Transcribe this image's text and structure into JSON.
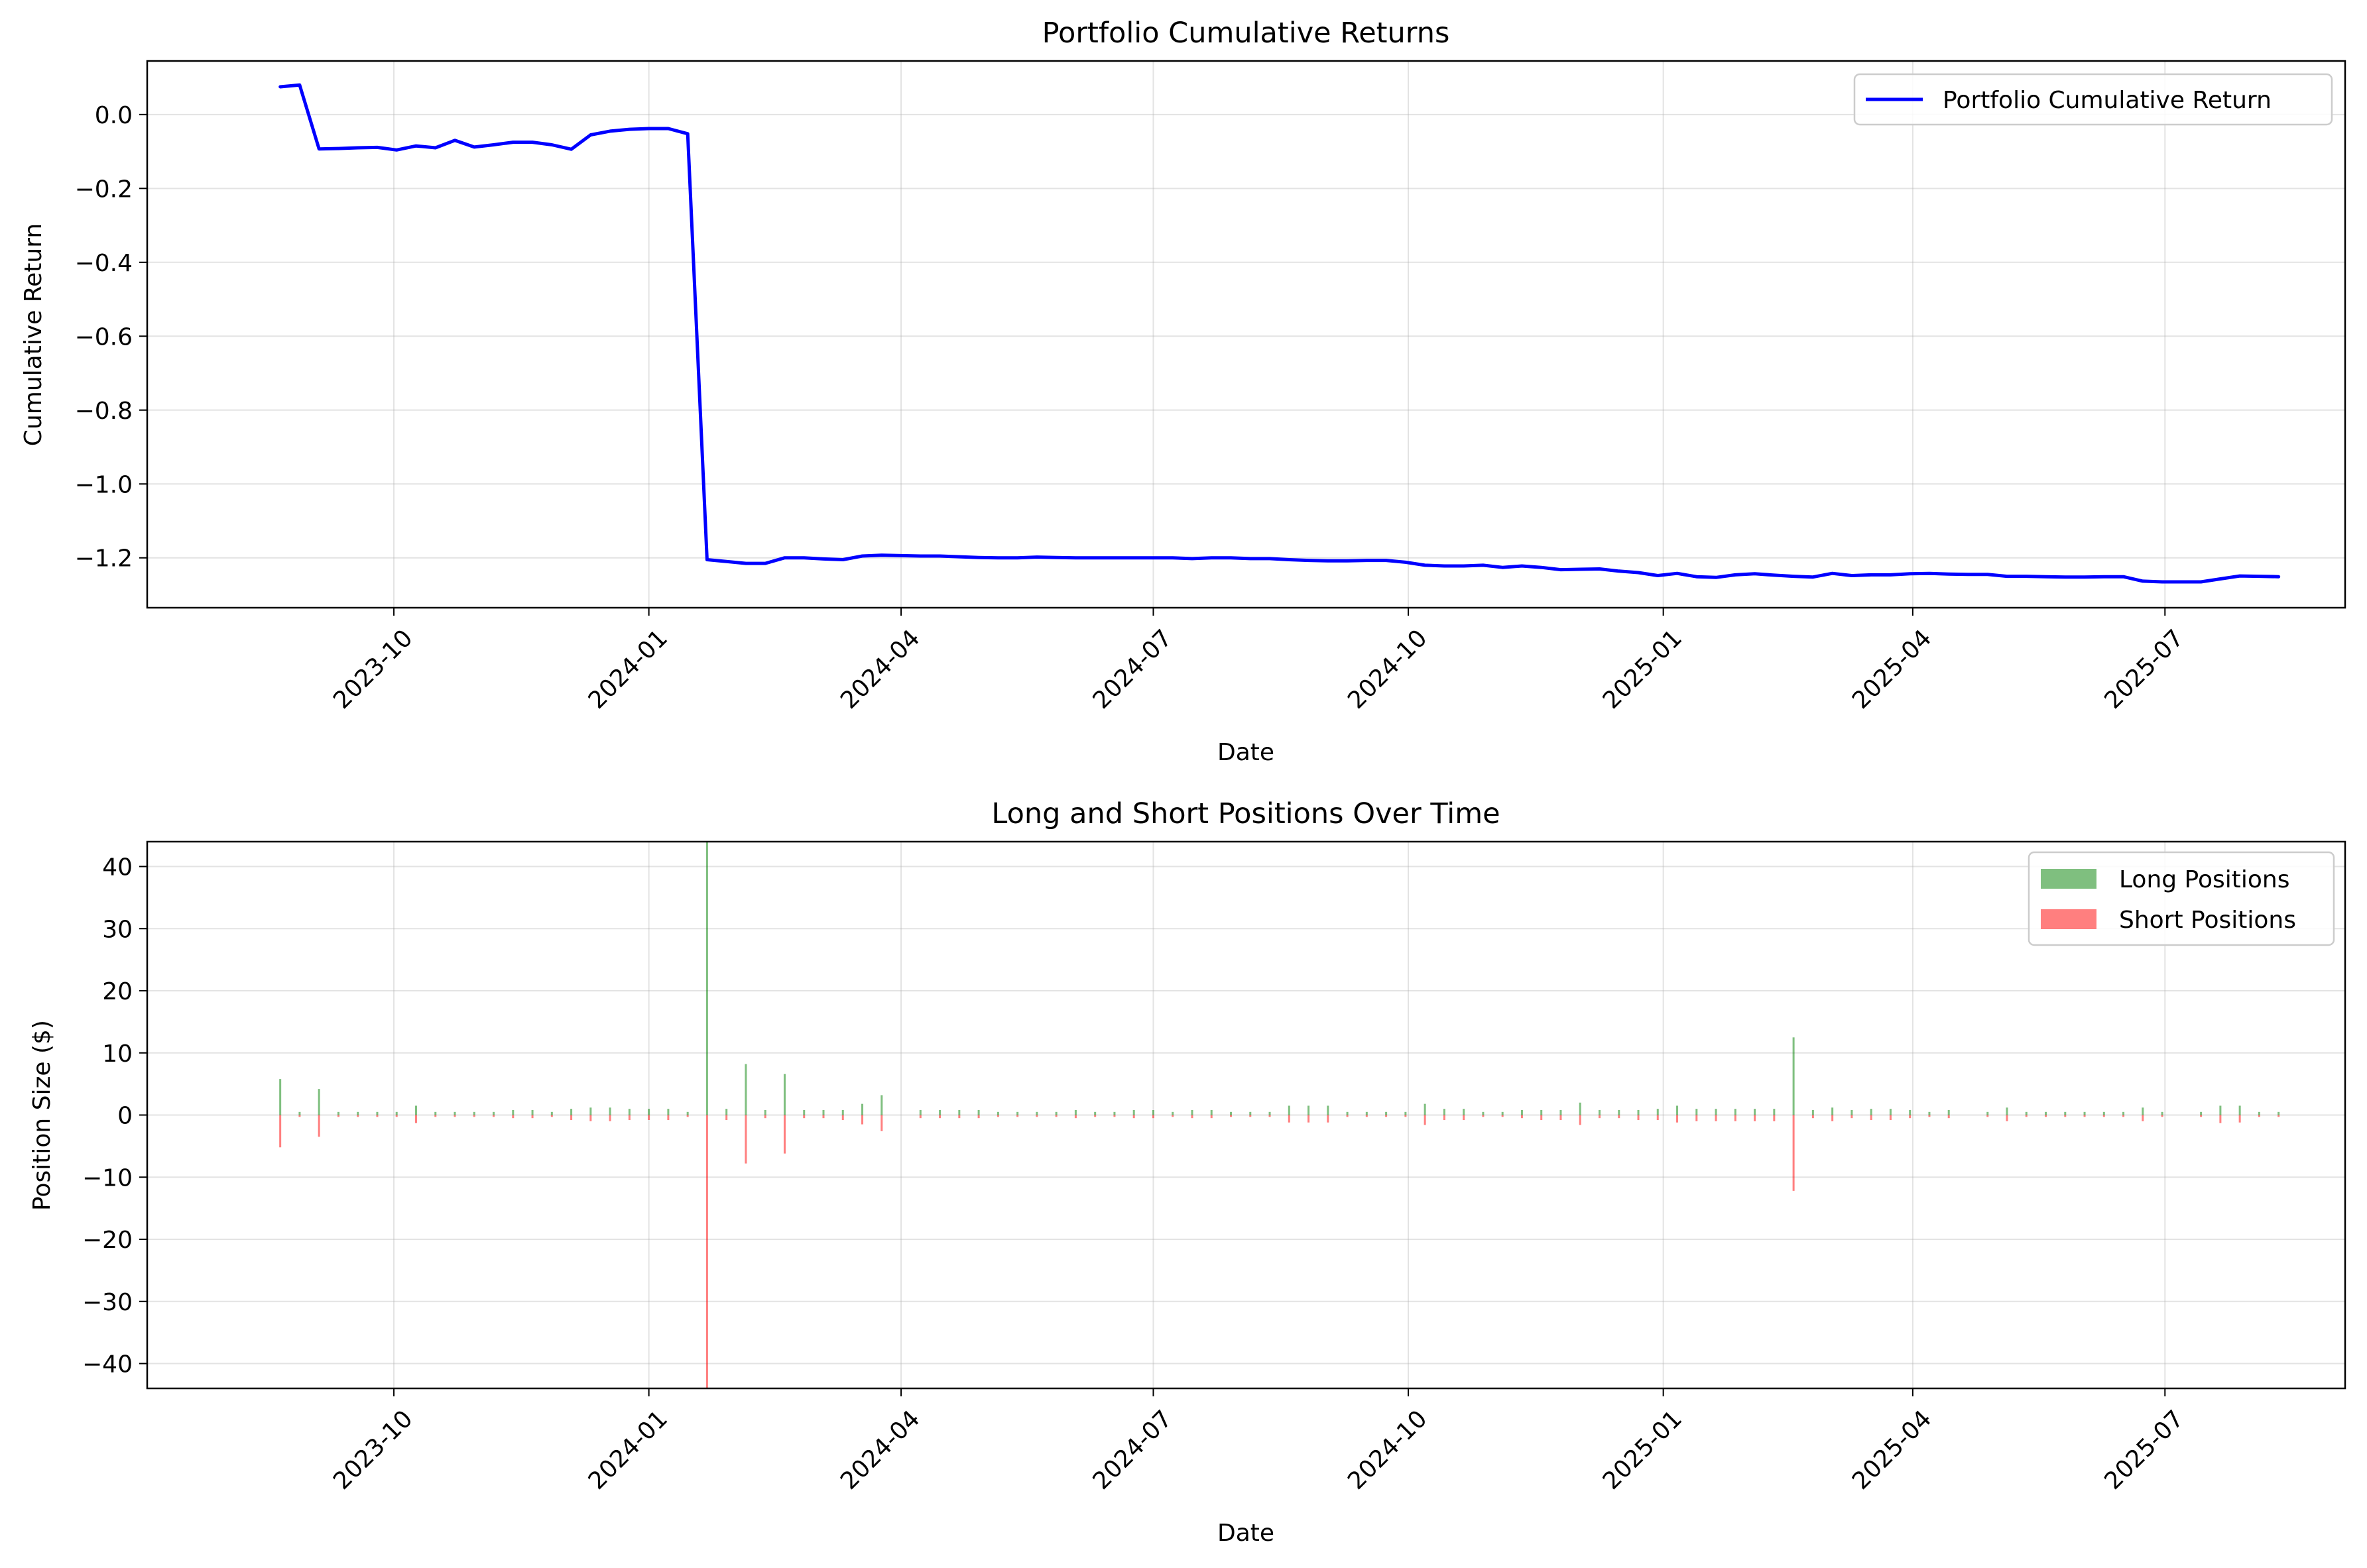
{
  "chart_data": [
    {
      "type": "line",
      "title": "Portfolio Cumulative Returns",
      "xlabel": "Date",
      "ylabel": "Cumulative Return",
      "xlim": [
        "2023-07-04",
        "2025-09-04"
      ],
      "ylim": [
        -1.335,
        0.145
      ],
      "x_ticks": [
        "2023-10",
        "2024-01",
        "2024-04",
        "2024-07",
        "2024-10",
        "2025-01",
        "2025-04",
        "2025-07"
      ],
      "y_ticks": [
        "0.0",
        "−0.2",
        "−0.4",
        "−0.6",
        "−0.8",
        "−1.0",
        "−1.2"
      ],
      "grid": true,
      "legend_position": "top-right",
      "series": [
        {
          "name": "Portfolio Cumulative Return",
          "color": "#0000ff",
          "x": [
            "2023-08-21",
            "2023-08-28",
            "2023-09-04",
            "2023-09-11",
            "2023-09-18",
            "2023-09-25",
            "2023-10-02",
            "2023-10-09",
            "2023-10-16",
            "2023-10-23",
            "2023-10-30",
            "2023-11-06",
            "2023-11-13",
            "2023-11-20",
            "2023-11-27",
            "2023-12-04",
            "2023-12-11",
            "2023-12-18",
            "2023-12-25",
            "2024-01-01",
            "2024-01-08",
            "2024-01-15",
            "2024-01-22",
            "2024-01-29",
            "2024-02-05",
            "2024-02-12",
            "2024-02-19",
            "2024-02-26",
            "2024-03-04",
            "2024-03-11",
            "2024-03-18",
            "2024-03-25",
            "2024-04-01",
            "2024-04-08",
            "2024-04-15",
            "2024-04-22",
            "2024-04-29",
            "2024-05-06",
            "2024-05-13",
            "2024-05-20",
            "2024-05-27",
            "2024-06-03",
            "2024-06-10",
            "2024-06-17",
            "2024-06-24",
            "2024-07-01",
            "2024-07-08",
            "2024-07-15",
            "2024-07-22",
            "2024-07-29",
            "2024-08-05",
            "2024-08-12",
            "2024-08-19",
            "2024-08-26",
            "2024-09-02",
            "2024-09-09",
            "2024-09-16",
            "2024-09-23",
            "2024-09-30",
            "2024-10-07",
            "2024-10-14",
            "2024-10-21",
            "2024-10-28",
            "2024-11-04",
            "2024-11-11",
            "2024-11-18",
            "2024-11-25",
            "2024-12-02",
            "2024-12-09",
            "2024-12-16",
            "2024-12-23",
            "2024-12-30",
            "2025-01-06",
            "2025-01-13",
            "2025-01-20",
            "2025-01-27",
            "2025-02-03",
            "2025-02-10",
            "2025-02-17",
            "2025-02-24",
            "2025-03-03",
            "2025-03-10",
            "2025-03-17",
            "2025-03-24",
            "2025-03-31",
            "2025-04-07",
            "2025-04-14",
            "2025-04-21",
            "2025-04-28",
            "2025-05-05",
            "2025-05-12",
            "2025-05-19",
            "2025-05-26",
            "2025-06-02",
            "2025-06-09",
            "2025-06-16",
            "2025-06-23",
            "2025-06-30",
            "2025-07-07",
            "2025-07-14",
            "2025-07-21",
            "2025-07-28",
            "2025-08-04",
            "2025-08-11"
          ],
          "y": [
            0.075,
            0.08,
            -0.093,
            -0.092,
            -0.09,
            -0.089,
            -0.096,
            -0.085,
            -0.09,
            -0.07,
            -0.088,
            -0.082,
            -0.075,
            -0.075,
            -0.082,
            -0.094,
            -0.055,
            -0.045,
            -0.04,
            -0.038,
            -0.038,
            -0.052,
            -1.205,
            -1.21,
            -1.215,
            -1.215,
            -1.2,
            -1.2,
            -1.203,
            -1.205,
            -1.195,
            -1.193,
            -1.194,
            -1.195,
            -1.195,
            -1.197,
            -1.199,
            -1.2,
            -1.2,
            -1.198,
            -1.199,
            -1.2,
            -1.2,
            -1.2,
            -1.2,
            -1.2,
            -1.2,
            -1.202,
            -1.2,
            -1.2,
            -1.202,
            -1.202,
            -1.205,
            -1.207,
            -1.208,
            -1.208,
            -1.207,
            -1.207,
            -1.212,
            -1.22,
            -1.222,
            -1.222,
            -1.22,
            -1.226,
            -1.222,
            -1.226,
            -1.232,
            -1.231,
            -1.23,
            -1.236,
            -1.24,
            -1.248,
            -1.242,
            -1.251,
            -1.253,
            -1.246,
            -1.243,
            -1.247,
            -1.25,
            -1.252,
            -1.242,
            -1.248,
            -1.246,
            -1.246,
            -1.243,
            -1.242,
            -1.244,
            -1.245,
            -1.245,
            -1.25,
            -1.25,
            -1.251,
            -1.252,
            -1.252,
            -1.251,
            -1.251,
            -1.263,
            -1.265,
            -1.265,
            -1.265,
            -1.257,
            -1.249,
            -1.25,
            -1.251
          ]
        }
      ]
    },
    {
      "type": "bar",
      "title": "Long and Short Positions Over Time",
      "xlabel": "Date",
      "ylabel": "Position Size ($)",
      "xlim": [
        "2023-07-04",
        "2025-09-04"
      ],
      "ylim": [
        -44,
        44
      ],
      "x_ticks": [
        "2023-10",
        "2024-01",
        "2024-04",
        "2024-07",
        "2024-10",
        "2025-01",
        "2025-04",
        "2025-07"
      ],
      "y_ticks": [
        "40",
        "30",
        "20",
        "10",
        "0",
        "−10",
        "−20",
        "−30",
        "−40"
      ],
      "grid": true,
      "legend_position": "top-right",
      "series": [
        {
          "name": "Long Positions",
          "color": "#008000",
          "opacity": 0.5
        },
        {
          "name": "Short Positions",
          "color": "#ff0000",
          "opacity": 0.5
        }
      ],
      "x": [
        "2023-08-21",
        "2023-08-28",
        "2023-09-04",
        "2023-09-11",
        "2023-09-18",
        "2023-09-25",
        "2023-10-02",
        "2023-10-09",
        "2023-10-16",
        "2023-10-23",
        "2023-10-30",
        "2023-11-06",
        "2023-11-13",
        "2023-11-20",
        "2023-11-27",
        "2023-12-04",
        "2023-12-11",
        "2023-12-18",
        "2023-12-25",
        "2024-01-01",
        "2024-01-08",
        "2024-01-15",
        "2024-01-22",
        "2024-01-29",
        "2024-02-05",
        "2024-02-12",
        "2024-02-19",
        "2024-02-26",
        "2024-03-04",
        "2024-03-11",
        "2024-03-18",
        "2024-03-25",
        "2024-04-01",
        "2024-04-08",
        "2024-04-15",
        "2024-04-22",
        "2024-04-29",
        "2024-05-06",
        "2024-05-13",
        "2024-05-20",
        "2024-05-27",
        "2024-06-03",
        "2024-06-10",
        "2024-06-17",
        "2024-06-24",
        "2024-07-01",
        "2024-07-08",
        "2024-07-15",
        "2024-07-22",
        "2024-07-29",
        "2024-08-05",
        "2024-08-12",
        "2024-08-19",
        "2024-08-26",
        "2024-09-02",
        "2024-09-09",
        "2024-09-16",
        "2024-09-23",
        "2024-09-30",
        "2024-10-07",
        "2024-10-14",
        "2024-10-21",
        "2024-10-28",
        "2024-11-04",
        "2024-11-11",
        "2024-11-18",
        "2024-11-25",
        "2024-12-02",
        "2024-12-09",
        "2024-12-16",
        "2024-12-23",
        "2024-12-30",
        "2025-01-06",
        "2025-01-13",
        "2025-01-20",
        "2025-01-27",
        "2025-02-03",
        "2025-02-10",
        "2025-02-17",
        "2025-02-24",
        "2025-03-03",
        "2025-03-10",
        "2025-03-17",
        "2025-03-24",
        "2025-03-31",
        "2025-04-07",
        "2025-04-14",
        "2025-04-21",
        "2025-04-28",
        "2025-05-05",
        "2025-05-12",
        "2025-05-19",
        "2025-05-26",
        "2025-06-02",
        "2025-06-09",
        "2025-06-16",
        "2025-06-23",
        "2025-06-30",
        "2025-07-07",
        "2025-07-14",
        "2025-07-21",
        "2025-07-28",
        "2025-08-04",
        "2025-08-11"
      ],
      "long": [
        5.8,
        0.5,
        4.2,
        0.5,
        0.5,
        0.5,
        0.5,
        1.5,
        0.5,
        0.5,
        0.5,
        0.5,
        0.8,
        0.8,
        0.5,
        1.0,
        1.2,
        1.2,
        1.0,
        1.0,
        1.0,
        0.5,
        44,
        1.0,
        8.2,
        0.8,
        6.6,
        0.8,
        0.8,
        0.8,
        1.8,
        3.2,
        0,
        0.8,
        0.8,
        0.8,
        0.8,
        0.5,
        0.5,
        0.5,
        0.5,
        0.8,
        0.5,
        0.5,
        0.8,
        0.8,
        0.5,
        0.8,
        0.8,
        0.5,
        0.5,
        0.5,
        1.5,
        1.5,
        1.5,
        0.5,
        0.5,
        0.5,
        0.5,
        1.8,
        1.0,
        1.0,
        0.5,
        0.5,
        0.8,
        0.8,
        0.8,
        2.0,
        0.8,
        0.8,
        0.8,
        1.0,
        1.5,
        1.0,
        1.0,
        1.0,
        1.0,
        1.0,
        12.5,
        0.8,
        1.2,
        0.8,
        1.0,
        1.0,
        0.8,
        0.5,
        0.8,
        0,
        0.5,
        1.2,
        0.5,
        0.5,
        0.5,
        0.5,
        0.5,
        0.5,
        1.2,
        0.5,
        0,
        0.5,
        1.5,
        1.5,
        0.5,
        0.5
      ],
      "short": [
        -5.2,
        -0.3,
        -3.5,
        -0.3,
        -0.3,
        -0.3,
        -0.3,
        -1.3,
        -0.3,
        -0.3,
        -0.3,
        -0.3,
        -0.5,
        -0.5,
        -0.3,
        -0.8,
        -1.0,
        -1.0,
        -0.8,
        -0.8,
        -0.8,
        -0.3,
        -44,
        -0.8,
        -7.8,
        -0.5,
        -6.2,
        -0.5,
        -0.5,
        -0.8,
        -1.5,
        -2.6,
        0,
        -0.5,
        -0.5,
        -0.5,
        -0.5,
        -0.3,
        -0.3,
        -0.3,
        -0.3,
        -0.5,
        -0.3,
        -0.3,
        -0.5,
        -0.5,
        -0.3,
        -0.5,
        -0.5,
        -0.3,
        -0.3,
        -0.3,
        -1.2,
        -1.2,
        -1.2,
        -0.3,
        -0.3,
        -0.3,
        -0.3,
        -1.6,
        -0.8,
        -0.8,
        -0.3,
        -0.3,
        -0.5,
        -0.8,
        -0.8,
        -1.6,
        -0.5,
        -0.5,
        -0.8,
        -0.8,
        -1.2,
        -1.0,
        -1.0,
        -1.0,
        -1.0,
        -1.0,
        -12.2,
        -0.5,
        -1.0,
        -0.5,
        -0.8,
        -0.8,
        -0.5,
        -0.3,
        -0.5,
        0,
        -0.3,
        -1.0,
        -0.3,
        -0.3,
        -0.3,
        -0.3,
        -0.3,
        -0.3,
        -1.0,
        -0.3,
        0,
        -0.3,
        -1.3,
        -1.2,
        -0.3,
        -0.3
      ]
    }
  ]
}
